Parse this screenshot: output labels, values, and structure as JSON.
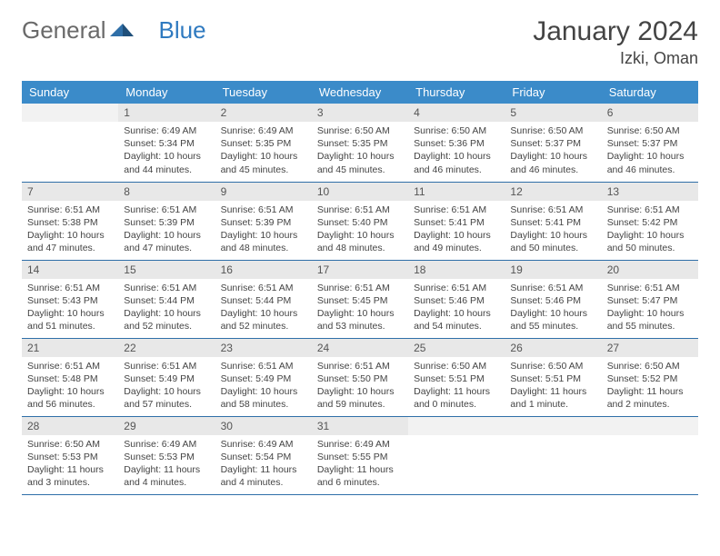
{
  "logo": {
    "text1": "General",
    "text2": "Blue"
  },
  "title": "January 2024",
  "location": "Izki, Oman",
  "colors": {
    "header_bg": "#3b8bc9",
    "header_text": "#ffffff",
    "daynum_bg": "#e8e8e8",
    "border": "#2f6fa8",
    "logo_gray": "#6a6a6a",
    "logo_blue": "#2f7ac0"
  },
  "daysOfWeek": [
    "Sunday",
    "Monday",
    "Tuesday",
    "Wednesday",
    "Thursday",
    "Friday",
    "Saturday"
  ],
  "firstDayOffset": 1,
  "daysInMonth": 31,
  "labels": {
    "sunrise": "Sunrise:",
    "sunset": "Sunset:",
    "daylight": "Daylight:"
  },
  "days": {
    "1": {
      "sunrise": "6:49 AM",
      "sunset": "5:34 PM",
      "daylight": "10 hours and 44 minutes."
    },
    "2": {
      "sunrise": "6:49 AM",
      "sunset": "5:35 PM",
      "daylight": "10 hours and 45 minutes."
    },
    "3": {
      "sunrise": "6:50 AM",
      "sunset": "5:35 PM",
      "daylight": "10 hours and 45 minutes."
    },
    "4": {
      "sunrise": "6:50 AM",
      "sunset": "5:36 PM",
      "daylight": "10 hours and 46 minutes."
    },
    "5": {
      "sunrise": "6:50 AM",
      "sunset": "5:37 PM",
      "daylight": "10 hours and 46 minutes."
    },
    "6": {
      "sunrise": "6:50 AM",
      "sunset": "5:37 PM",
      "daylight": "10 hours and 46 minutes."
    },
    "7": {
      "sunrise": "6:51 AM",
      "sunset": "5:38 PM",
      "daylight": "10 hours and 47 minutes."
    },
    "8": {
      "sunrise": "6:51 AM",
      "sunset": "5:39 PM",
      "daylight": "10 hours and 47 minutes."
    },
    "9": {
      "sunrise": "6:51 AM",
      "sunset": "5:39 PM",
      "daylight": "10 hours and 48 minutes."
    },
    "10": {
      "sunrise": "6:51 AM",
      "sunset": "5:40 PM",
      "daylight": "10 hours and 48 minutes."
    },
    "11": {
      "sunrise": "6:51 AM",
      "sunset": "5:41 PM",
      "daylight": "10 hours and 49 minutes."
    },
    "12": {
      "sunrise": "6:51 AM",
      "sunset": "5:41 PM",
      "daylight": "10 hours and 50 minutes."
    },
    "13": {
      "sunrise": "6:51 AM",
      "sunset": "5:42 PM",
      "daylight": "10 hours and 50 minutes."
    },
    "14": {
      "sunrise": "6:51 AM",
      "sunset": "5:43 PM",
      "daylight": "10 hours and 51 minutes."
    },
    "15": {
      "sunrise": "6:51 AM",
      "sunset": "5:44 PM",
      "daylight": "10 hours and 52 minutes."
    },
    "16": {
      "sunrise": "6:51 AM",
      "sunset": "5:44 PM",
      "daylight": "10 hours and 52 minutes."
    },
    "17": {
      "sunrise": "6:51 AM",
      "sunset": "5:45 PM",
      "daylight": "10 hours and 53 minutes."
    },
    "18": {
      "sunrise": "6:51 AM",
      "sunset": "5:46 PM",
      "daylight": "10 hours and 54 minutes."
    },
    "19": {
      "sunrise": "6:51 AM",
      "sunset": "5:46 PM",
      "daylight": "10 hours and 55 minutes."
    },
    "20": {
      "sunrise": "6:51 AM",
      "sunset": "5:47 PM",
      "daylight": "10 hours and 55 minutes."
    },
    "21": {
      "sunrise": "6:51 AM",
      "sunset": "5:48 PM",
      "daylight": "10 hours and 56 minutes."
    },
    "22": {
      "sunrise": "6:51 AM",
      "sunset": "5:49 PM",
      "daylight": "10 hours and 57 minutes."
    },
    "23": {
      "sunrise": "6:51 AM",
      "sunset": "5:49 PM",
      "daylight": "10 hours and 58 minutes."
    },
    "24": {
      "sunrise": "6:51 AM",
      "sunset": "5:50 PM",
      "daylight": "10 hours and 59 minutes."
    },
    "25": {
      "sunrise": "6:50 AM",
      "sunset": "5:51 PM",
      "daylight": "11 hours and 0 minutes."
    },
    "26": {
      "sunrise": "6:50 AM",
      "sunset": "5:51 PM",
      "daylight": "11 hours and 1 minute."
    },
    "27": {
      "sunrise": "6:50 AM",
      "sunset": "5:52 PM",
      "daylight": "11 hours and 2 minutes."
    },
    "28": {
      "sunrise": "6:50 AM",
      "sunset": "5:53 PM",
      "daylight": "11 hours and 3 minutes."
    },
    "29": {
      "sunrise": "6:49 AM",
      "sunset": "5:53 PM",
      "daylight": "11 hours and 4 minutes."
    },
    "30": {
      "sunrise": "6:49 AM",
      "sunset": "5:54 PM",
      "daylight": "11 hours and 4 minutes."
    },
    "31": {
      "sunrise": "6:49 AM",
      "sunset": "5:55 PM",
      "daylight": "11 hours and 6 minutes."
    }
  }
}
